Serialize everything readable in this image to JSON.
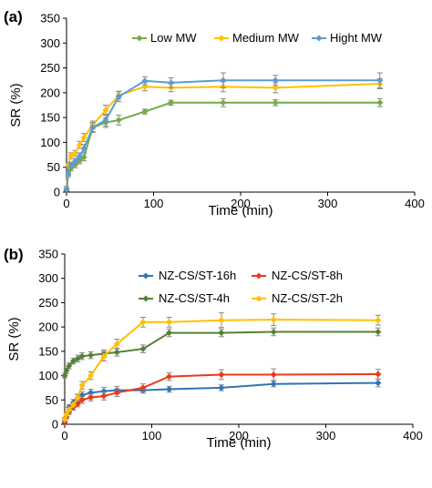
{
  "chart_data": [
    {
      "panel_label": "(a)",
      "type": "line",
      "xlabel": "Time (min)",
      "ylabel": "SR (%)",
      "xlim": [
        0,
        400
      ],
      "ylim": [
        0,
        350
      ],
      "xticks": [
        "0",
        "100",
        "200",
        "300",
        "400"
      ],
      "yticks": [
        "0",
        "50",
        "100",
        "150",
        "200",
        "250",
        "300",
        "350"
      ],
      "grid": false,
      "legend": "top-right",
      "series": [
        {
          "name": "Low MW",
          "color": "#70ad47",
          "x": [
            0,
            2,
            5,
            10,
            15,
            20,
            30,
            45,
            60,
            90,
            120,
            180,
            240,
            360
          ],
          "y": [
            5,
            35,
            48,
            55,
            63,
            70,
            130,
            140,
            145,
            162,
            180,
            180,
            180,
            180
          ],
          "err": [
            3,
            4,
            5,
            6,
            6,
            7,
            8,
            10,
            10,
            5,
            5,
            8,
            6,
            8
          ]
        },
        {
          "name": "Medium MW",
          "color": "#ffc000",
          "x": [
            0,
            2,
            5,
            10,
            15,
            20,
            30,
            45,
            60,
            90,
            120,
            180,
            240,
            360
          ],
          "y": [
            8,
            55,
            73,
            78,
            95,
            110,
            135,
            165,
            195,
            212,
            210,
            212,
            210,
            218
          ],
          "err": [
            4,
            5,
            6,
            6,
            7,
            8,
            8,
            10,
            8,
            8,
            8,
            10,
            10,
            10
          ]
        },
        {
          "name": "Hight MW",
          "color": "#5b9bd5",
          "x": [
            0,
            2,
            5,
            10,
            15,
            20,
            30,
            45,
            60,
            90,
            120,
            180,
            240,
            360
          ],
          "y": [
            5,
            40,
            55,
            62,
            72,
            88,
            130,
            145,
            192,
            224,
            220,
            225,
            225,
            225
          ],
          "err": [
            3,
            5,
            5,
            6,
            7,
            8,
            10,
            12,
            10,
            8,
            10,
            15,
            10,
            15
          ]
        }
      ]
    },
    {
      "panel_label": "(b)",
      "type": "line",
      "xlabel": "Time (min)",
      "ylabel": "SR (%)",
      "xlim": [
        0,
        400
      ],
      "ylim": [
        0,
        350
      ],
      "xticks": [
        "0",
        "100",
        "200",
        "300",
        "400"
      ],
      "yticks": [
        "0",
        "50",
        "100",
        "150",
        "200",
        "250",
        "300",
        "350"
      ],
      "grid": false,
      "legend": "center",
      "series": [
        {
          "name": "NZ-CS/ST-16h",
          "color": "#2e75b6",
          "x": [
            0,
            2,
            5,
            10,
            15,
            20,
            30,
            45,
            60,
            90,
            120,
            180,
            240,
            360
          ],
          "y": [
            5,
            20,
            35,
            45,
            55,
            60,
            65,
            68,
            70,
            70,
            72,
            75,
            83,
            85
          ],
          "err": [
            3,
            4,
            5,
            6,
            6,
            7,
            7,
            8,
            8,
            6,
            6,
            6,
            6,
            8
          ]
        },
        {
          "name": "NZ-CS/ST-8h",
          "color": "#e83a1a",
          "x": [
            0,
            2,
            5,
            10,
            15,
            20,
            30,
            45,
            60,
            90,
            120,
            180,
            240,
            360
          ],
          "y": [
            5,
            15,
            25,
            35,
            42,
            50,
            55,
            58,
            65,
            75,
            98,
            102,
            102,
            103
          ],
          "err": [
            3,
            4,
            5,
            6,
            6,
            7,
            7,
            8,
            8,
            8,
            8,
            10,
            12,
            10
          ]
        },
        {
          "name": "NZ-CS/ST-4h",
          "color": "#548235",
          "x": [
            0,
            2,
            5,
            10,
            15,
            20,
            30,
            45,
            60,
            90,
            120,
            180,
            240,
            360
          ],
          "y": [
            100,
            110,
            120,
            130,
            135,
            140,
            142,
            145,
            148,
            155,
            188,
            188,
            190,
            190
          ],
          "err": [
            5,
            6,
            6,
            6,
            7,
            7,
            7,
            8,
            8,
            8,
            8,
            8,
            8,
            8
          ]
        },
        {
          "name": "NZ-CS/ST-2h",
          "color": "#ffc000",
          "x": [
            0,
            2,
            5,
            10,
            15,
            20,
            30,
            45,
            60,
            90,
            120,
            180,
            240,
            360
          ],
          "y": [
            10,
            20,
            30,
            40,
            55,
            80,
            100,
            140,
            165,
            210,
            210,
            214,
            215,
            214
          ],
          "err": [
            4,
            5,
            6,
            6,
            7,
            8,
            8,
            10,
            10,
            10,
            10,
            15,
            12,
            10
          ]
        }
      ]
    }
  ]
}
